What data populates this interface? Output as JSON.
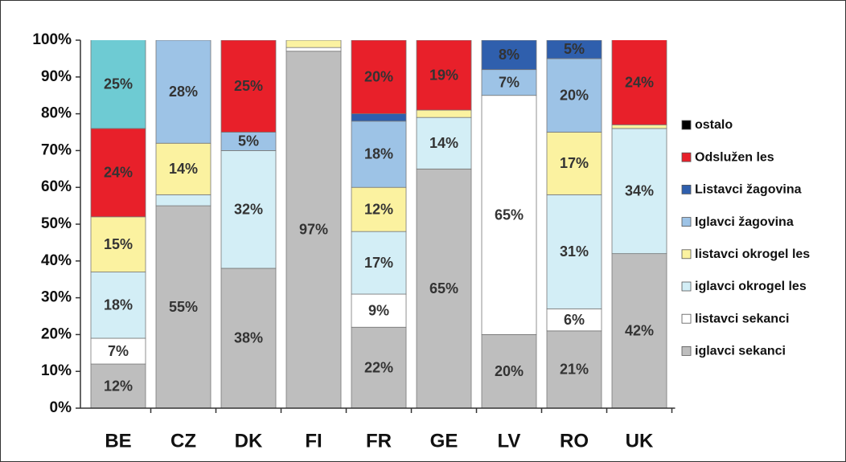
{
  "chart_data": {
    "type": "stacked_bar",
    "categories": [
      "BE",
      "CZ",
      "DK",
      "FI",
      "FR",
      "GE",
      "LV",
      "RO",
      "UK"
    ],
    "ylim": [
      0,
      100
    ],
    "yticks": [
      {
        "value": 0,
        "label": "0%"
      },
      {
        "value": 10,
        "label": "10%"
      },
      {
        "value": 20,
        "label": "20%"
      },
      {
        "value": 30,
        "label": "30%"
      },
      {
        "value": 40,
        "label": "40%"
      },
      {
        "value": 50,
        "label": "50%"
      },
      {
        "value": 60,
        "label": "60%"
      },
      {
        "value": 70,
        "label": "70%"
      },
      {
        "value": 80,
        "label": "80%"
      },
      {
        "value": 90,
        "label": "90%"
      },
      {
        "value": 100,
        "label": "100%"
      }
    ],
    "series": [
      {
        "name": "iglavci sekanci",
        "color": "#bebebe",
        "values": [
          12,
          55,
          38,
          97,
          22,
          65,
          20,
          21,
          42
        ],
        "value_labels": [
          "12%",
          "55%",
          "38%",
          "97%",
          "22%",
          "65%",
          "20%",
          "21%",
          "42%"
        ]
      },
      {
        "name": "listavci sekanci",
        "color": "#ffffff",
        "values": [
          7,
          0,
          0,
          1,
          9,
          0,
          65,
          6,
          0
        ],
        "value_labels": [
          "7%",
          null,
          null,
          null,
          "9%",
          null,
          "65%",
          "6%",
          null
        ]
      },
      {
        "name": "iglavci okrogel les",
        "color": "#d3eef6",
        "values": [
          18,
          3,
          32,
          0,
          17,
          14,
          0,
          31,
          34
        ],
        "value_labels": [
          "18%",
          null,
          "32%",
          null,
          "17%",
          "14%",
          null,
          "31%",
          "34%"
        ]
      },
      {
        "name": "listavci okrogel les",
        "color": "#fbf2a0",
        "values": [
          15,
          14,
          0,
          2,
          12,
          2,
          0,
          17,
          1
        ],
        "value_labels": [
          "15%",
          "14%",
          null,
          null,
          "12%",
          null,
          null,
          "17%",
          null
        ]
      },
      {
        "name": "Iglavci žagovina",
        "color": "#9dc3e6",
        "values": [
          0,
          28,
          5,
          0,
          18,
          0,
          7,
          20,
          0
        ],
        "value_labels": [
          null,
          "28%",
          "5%",
          null,
          "18%",
          null,
          "7%",
          "20%",
          null
        ]
      },
      {
        "name": "Listavci žagovina",
        "color": "#2f5fad",
        "values": [
          0,
          0,
          0,
          0,
          2,
          0,
          8,
          5,
          0
        ],
        "value_labels": [
          null,
          null,
          null,
          null,
          null,
          null,
          "8%",
          "5%",
          null
        ]
      },
      {
        "name": "Odslužen les",
        "color": "#e8202a",
        "values": [
          24,
          0,
          25,
          0,
          20,
          19,
          0,
          0,
          24
        ],
        "value_labels": [
          "24%",
          null,
          "25%",
          null,
          "20%",
          "19%",
          null,
          null,
          "24%"
        ]
      },
      {
        "name": "ostalo",
        "color": "#000000",
        "colors": [
          "#6ecbd3",
          "#000000",
          "#000000",
          "#000000",
          "#000000",
          "#000000",
          "#000000",
          "#000000",
          "#000000"
        ],
        "values": [
          25,
          0,
          0,
          0,
          0,
          0,
          0,
          0,
          0
        ],
        "value_labels": [
          "25%",
          null,
          null,
          null,
          null,
          null,
          null,
          null,
          null
        ]
      }
    ],
    "legend": "right"
  }
}
